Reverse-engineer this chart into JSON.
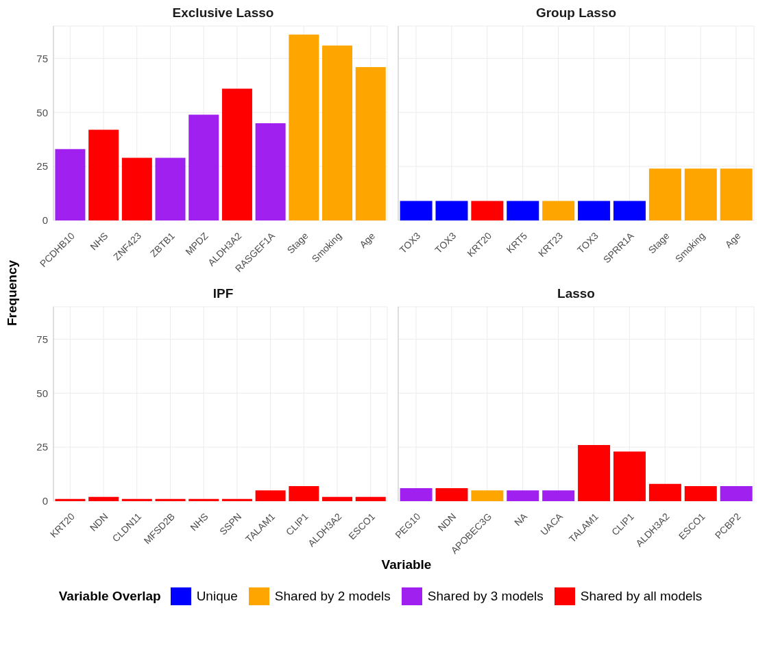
{
  "chart_data": [
    {
      "type": "bar",
      "title": "Exclusive Lasso",
      "ylabel": "Frequency",
      "stacked": true,
      "grid": true,
      "ylim": [
        0,
        90
      ],
      "yticks": [
        0,
        25,
        50,
        75
      ],
      "legend": "bottom",
      "legend_title": "Variable Overlap",
      "categories": [
        "PCDHB10",
        "NHS",
        "ZNF423",
        "ZBTB1",
        "MPDZ",
        "ALDH3A2",
        "RASGEF1A",
        "Stage",
        "Smoking",
        "Age"
      ],
      "series": [
        {
          "name": "Unique",
          "color": "#0000ff",
          "values": [
            null,
            null,
            null,
            null,
            null,
            null,
            null,
            null,
            null,
            null
          ]
        },
        {
          "name": "Shared by 2 models",
          "color": "#ffa500",
          "values": [
            null,
            null,
            null,
            null,
            null,
            null,
            null,
            86,
            81,
            71
          ]
        },
        {
          "name": "Shared by 3 models",
          "color": "#a020f0",
          "values": [
            33,
            null,
            null,
            29,
            49,
            null,
            45,
            null,
            null,
            null
          ]
        },
        {
          "name": "Shared by all models",
          "color": "#ff0000",
          "values": [
            null,
            42,
            29,
            null,
            null,
            61,
            null,
            null,
            null,
            null
          ]
        }
      ]
    },
    {
      "type": "bar",
      "title": "Group Lasso",
      "stacked": true,
      "grid": true,
      "ylim": [
        0,
        90
      ],
      "yticks": [
        0,
        25,
        50,
        75
      ],
      "tick_labels": "x",
      "categories": [
        "TOX3",
        "TOX3",
        "KRT20",
        "KRT5",
        "KRT23",
        "TOX3",
        "SPRR1A",
        "Stage",
        "Smoking",
        "Age"
      ],
      "series": [
        {
          "color": "#0000ff",
          "values": [
            9,
            9,
            null,
            9,
            null,
            9,
            9,
            null,
            null,
            null
          ]
        },
        {
          "color": "#ffa500",
          "values": [
            null,
            null,
            null,
            null,
            9,
            null,
            null,
            24,
            24,
            24
          ]
        },
        {
          "color": "#ff0000",
          "values": [
            null,
            null,
            9,
            null,
            null,
            null,
            null,
            null,
            null,
            null
          ]
        }
      ]
    },
    {
      "type": "bar",
      "title": "IPF",
      "xlabel": "Variable",
      "stacked": true,
      "grid": true,
      "ylim": [
        0,
        90
      ],
      "yticks": [
        0,
        25,
        50,
        75
      ],
      "categories": [
        "KRT20",
        "NDN",
        "CLDN11",
        "MFSD2B",
        "NHS",
        "SSPN",
        "TALAM1",
        "CLIP1",
        "ALDH3A2",
        "ESCO1"
      ],
      "series": [
        {
          "color": "#ff0000",
          "values": [
            1,
            2,
            1,
            1,
            1,
            1,
            5,
            7,
            2,
            2
          ]
        }
      ]
    },
    {
      "type": "bar",
      "title": "Lasso",
      "stacked": true,
      "grid": true,
      "ylim": [
        0,
        90
      ],
      "yticks": [
        0,
        25,
        50,
        75
      ],
      "tick_labels": "x",
      "categories": [
        "PEG10",
        "NDN",
        "APOBEC3G",
        "NA",
        "UACA",
        "TALAM1",
        "CLIP1",
        "ALDH3A2",
        "ESCO1",
        "PCBP2"
      ],
      "series": [
        {
          "color": "#ffa500",
          "values": [
            null,
            null,
            5,
            null,
            null,
            null,
            null,
            null,
            null,
            null
          ]
        },
        {
          "color": "#a020f0",
          "values": [
            6,
            null,
            null,
            5,
            5,
            null,
            null,
            null,
            null,
            7
          ]
        },
        {
          "color": "#ff0000",
          "values": [
            null,
            6,
            null,
            null,
            null,
            26,
            23,
            8,
            7,
            null
          ]
        }
      ]
    }
  ]
}
